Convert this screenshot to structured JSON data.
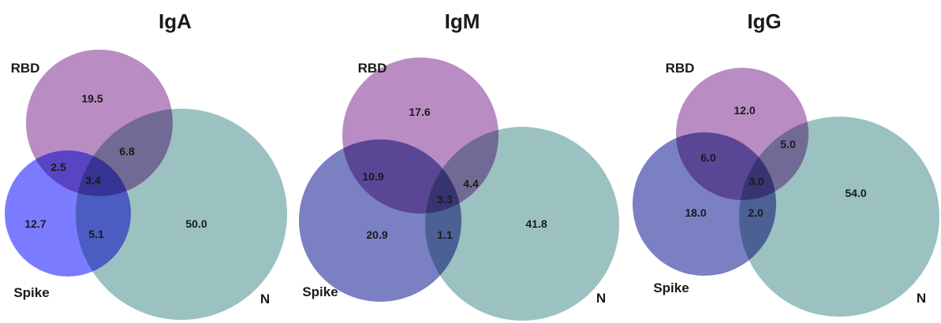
{
  "colors": {
    "rbd": "#b98cc3",
    "spike_iga": "#7b7bff",
    "spike": "#7b80c3",
    "n": "#9bc1c1"
  },
  "panels": [
    {
      "title": "IgA",
      "sets": {
        "rbd": "RBD",
        "spike": "Spike",
        "n": "N"
      },
      "regions": {
        "rbd_only": "19.5",
        "rbd_spike": "2.5",
        "rbd_n": "6.8",
        "all": "3.4",
        "spike_only": "12.7",
        "spike_n": "5.1",
        "n_only": "50.0"
      }
    },
    {
      "title": "IgM",
      "sets": {
        "rbd": "RBD",
        "spike": "Spike",
        "n": "N"
      },
      "regions": {
        "rbd_only": "17.6",
        "rbd_spike": "10.9",
        "rbd_n": "4.4",
        "all": "3.3",
        "spike_only": "20.9",
        "spike_n": "1.1",
        "n_only": "41.8"
      }
    },
    {
      "title": "IgG",
      "sets": {
        "rbd": "RBD",
        "spike": "Spike",
        "n": "N"
      },
      "regions": {
        "rbd_only": "12.0",
        "rbd_spike": "6.0",
        "rbd_n": "5.0",
        "all": "3.0",
        "spike_only": "18.0",
        "spike_n": "2.0",
        "n_only": "54.0"
      }
    }
  ]
}
